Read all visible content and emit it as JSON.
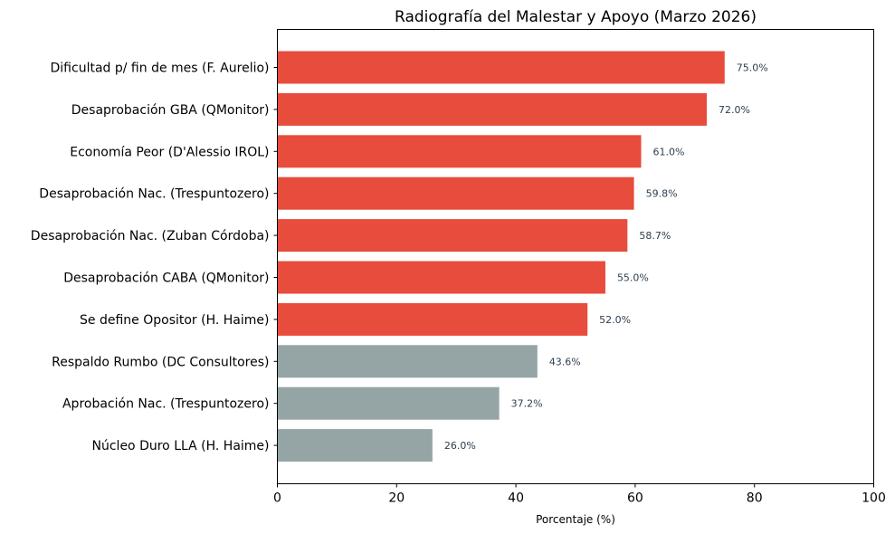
{
  "chart_data": {
    "type": "bar",
    "orientation": "horizontal",
    "title": "Radiografía del Malestar y Apoyo (Marzo 2026)",
    "xlabel": "Porcentaje (%)",
    "ylabel": "",
    "xlim": [
      0,
      100
    ],
    "xticks": [
      "0",
      "20",
      "40",
      "60",
      "80",
      "100"
    ],
    "grid": false,
    "legend": "none",
    "categories": [
      "Dificultad p/ fin de mes (F. Aurelio)",
      "Desaprobación GBA (QMonitor)",
      "Economía Peor (D'Alessio IROL)",
      "Desaprobación Nac. (Trespuntozero)",
      "Desaprobación Nac. (Zuban Córdoba)",
      "Desaprobación CABA (QMonitor)",
      "Se define Opositor (H. Haime)",
      "Respaldo Rumbo (DC Consultores)",
      "Aprobación Nac. (Trespuntozero)",
      "Núcleo Duro LLA (H. Haime)"
    ],
    "values": [
      75.0,
      72.0,
      61.0,
      59.8,
      58.7,
      55.0,
      52.0,
      43.6,
      37.2,
      26.0
    ],
    "value_labels": [
      "75.0%",
      "72.0%",
      "61.0%",
      "59.8%",
      "58.7%",
      "55.0%",
      "52.0%",
      "43.6%",
      "37.2%",
      "26.0%"
    ],
    "bar_colors": [
      "#e74c3c",
      "#e74c3c",
      "#e74c3c",
      "#e74c3c",
      "#e74c3c",
      "#e74c3c",
      "#e74c3c",
      "#95a5a6",
      "#95a5a6",
      "#95a5a6"
    ]
  }
}
